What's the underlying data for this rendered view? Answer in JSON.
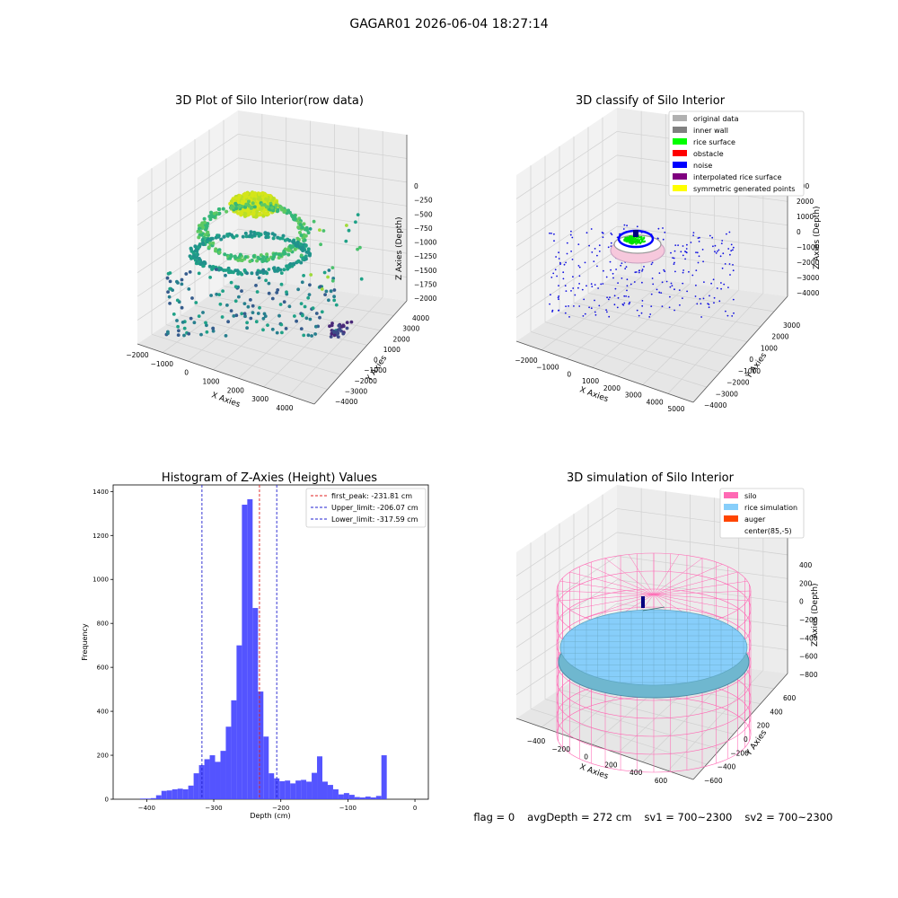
{
  "suptitle": "GAGAR01 2026-06-04 18:27:14",
  "status": {
    "flag": "flag = 0",
    "avg_depth": "avgDepth = 272 cm",
    "sv1": "sv1 = 700~2300",
    "sv2": "sv2 = 700~2300"
  },
  "colors": {
    "hist_bar": "#4b4bff",
    "peak_line": "#e02020",
    "limit_line": "#2020d0",
    "silo_wire": "#ff69b4",
    "rice_sim": "#87cefa",
    "auger": "#ff4500",
    "noise": "#0000ff",
    "rice_surface": "#00ff00",
    "inner_wall": "#808080",
    "original": "#b0b0b0",
    "interp": "#800080",
    "symmetric": "#ffff00"
  },
  "chart_data": [
    {
      "type": "scatter",
      "title": "3D Plot of Silo Interior(row data)",
      "xlabel": "X Axies",
      "ylabel": "Y Axies",
      "zlabel": "Z Axies (Depth)",
      "xticks": [
        "−2000",
        "−1000",
        "0",
        "1000",
        "2000",
        "3000",
        "4000"
      ],
      "yticks": [
        "4000",
        "3000",
        "2000",
        "1000",
        "0",
        "−1000",
        "−2000",
        "−3000",
        "−4000"
      ],
      "zticks": [
        "0",
        "−250",
        "−500",
        "−750",
        "−1000",
        "−1250",
        "−1500",
        "−1750",
        "−2000"
      ],
      "colormap": "viridis"
    },
    {
      "type": "scatter",
      "title": "3D classify of Silo Interior",
      "xlabel": "X Axies",
      "ylabel": "Y Axies",
      "zlabel": "Z Axies (Depth)",
      "xticks": [
        "−2000",
        "−1000",
        "0",
        "1000",
        "2000",
        "3000",
        "4000",
        "5000"
      ],
      "yticks": [
        "3000",
        "2000",
        "1000",
        "0",
        "−1000",
        "−2000",
        "−3000",
        "−4000"
      ],
      "zticks": [
        "2000",
        "1000",
        "0",
        "−1000",
        "−2000",
        "−3000",
        "−4000"
      ],
      "ztick_top_partial": "000",
      "legend": [
        {
          "label": "original data",
          "color": "#b0b0b0"
        },
        {
          "label": "inner wall",
          "color": "#808080"
        },
        {
          "label": "rice surface",
          "color": "#00ff00"
        },
        {
          "label": "obstacle",
          "color": "#ff0000"
        },
        {
          "label": "noise",
          "color": "#0000ff"
        },
        {
          "label": "interpolated rice surface",
          "color": "#800080"
        },
        {
          "label": "symmetric generated points",
          "color": "#ffff00"
        }
      ],
      "legend_position": "top-right"
    },
    {
      "type": "bar",
      "title": "Histogram of Z-Axies (Height) Values",
      "xlabel": "Depth (cm)",
      "ylabel": "Frequency",
      "xlim": [
        -450,
        20
      ],
      "ylim": [
        0,
        1430
      ],
      "xticks": [
        -400,
        -300,
        -200,
        -100,
        0
      ],
      "yticks": [
        0,
        200,
        400,
        600,
        800,
        1000,
        1200,
        1400
      ],
      "bin_width": 8,
      "bin_start": -410,
      "values": [
        3,
        3,
        5,
        18,
        38,
        40,
        45,
        48,
        45,
        62,
        118,
        155,
        182,
        200,
        170,
        220,
        330,
        450,
        700,
        1340,
        1365,
        870,
        490,
        285,
        118,
        95,
        82,
        85,
        72,
        85,
        88,
        80,
        120,
        195,
        80,
        65,
        45,
        22,
        28,
        20,
        10,
        8,
        12,
        8,
        15,
        200
      ],
      "vlines": [
        {
          "label": "first_peak: -231.81 cm",
          "x": -231.81,
          "style": "peak"
        },
        {
          "label": "Upper_limit: -206.07 cm",
          "x": -206.07,
          "style": "limit"
        },
        {
          "label": "Lower_limit: -317.59 cm",
          "x": -317.59,
          "style": "limit"
        }
      ],
      "legend_position": "top-right"
    },
    {
      "type": "scatter",
      "title": "3D simulation of Silo Interior",
      "xlabel": "X Axies",
      "ylabel": "Y Axies",
      "zlabel": "Z Axies (Depth)",
      "xticks": [
        "−400",
        "−200",
        "0",
        "200",
        "400",
        "600"
      ],
      "yticks": [
        "600",
        "400",
        "200",
        "0",
        "−200",
        "−400",
        "−600"
      ],
      "zticks": [
        "400",
        "200",
        "0",
        "−200",
        "−400",
        "−600",
        "−800"
      ],
      "legend": [
        {
          "label": "silo",
          "color": "#ff69b4"
        },
        {
          "label": "rice simulation",
          "color": "#87cefa"
        },
        {
          "label": "auger",
          "color": "#ff4500"
        },
        {
          "label": "center(85,-5)",
          "color": ""
        }
      ],
      "legend_position": "top-right"
    }
  ]
}
